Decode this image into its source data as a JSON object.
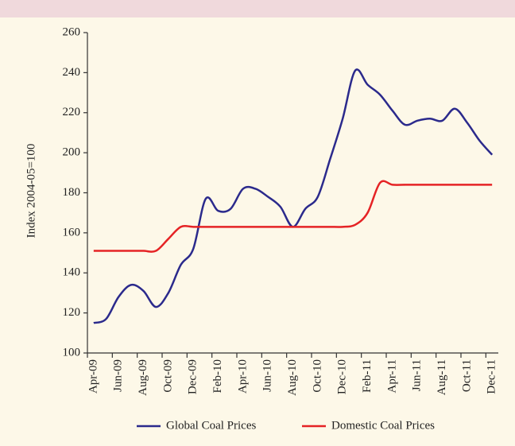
{
  "chart_data": {
    "type": "line",
    "ylabel": "Index 2004-05=100",
    "categories": [
      "Apr-09",
      null,
      "Jun-09",
      null,
      "Aug-09",
      null,
      "Oct-09",
      null,
      "Dec-09",
      null,
      "Feb-10",
      null,
      "Apr-10",
      null,
      "Jun-10",
      null,
      "Aug-10",
      null,
      "Oct-10",
      null,
      "Dec-10",
      null,
      "Feb-11",
      null,
      "Apr-11",
      null,
      "Jun-11",
      null,
      "Aug-11",
      null,
      "Oct-11",
      null,
      "Dec-11"
    ],
    "series": [
      {
        "name": "Global Coal Prices",
        "color": "#2b2a8c",
        "values": [
          115,
          117,
          128,
          134,
          131,
          123,
          130,
          144,
          152,
          177,
          171,
          172,
          182,
          182,
          178,
          173,
          163,
          172,
          178,
          197,
          217,
          241,
          234,
          229,
          221,
          214,
          216,
          217,
          216,
          222,
          215,
          206,
          199
        ]
      },
      {
        "name": "Domestic Coal Prices",
        "color": "#e52325",
        "values": [
          151,
          151,
          151,
          151,
          151,
          151,
          157,
          163,
          163,
          163,
          163,
          163,
          163,
          163,
          163,
          163,
          163,
          163,
          163,
          163,
          163,
          164,
          170,
          185,
          184,
          184,
          184,
          184,
          184,
          184,
          184,
          184,
          184
        ]
      }
    ],
    "ylim": [
      100,
      260
    ],
    "yticks": [
      100,
      120,
      140,
      160,
      180,
      200,
      220,
      240,
      260
    ]
  }
}
